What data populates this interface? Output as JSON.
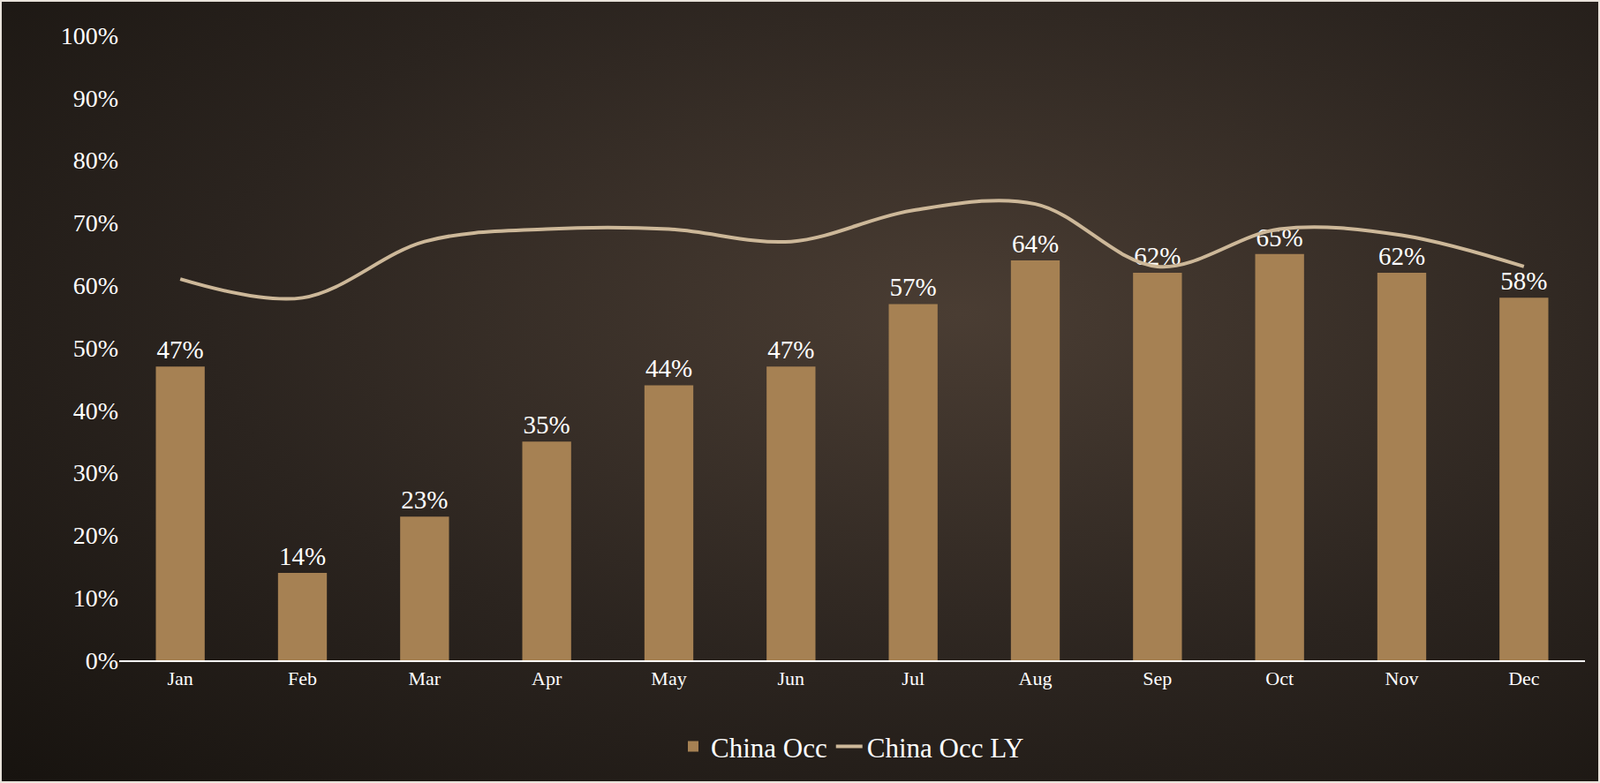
{
  "chart_data": {
    "type": "bar",
    "categories": [
      "Jan",
      "Feb",
      "Mar",
      "Apr",
      "May",
      "Jun",
      "Jul",
      "Aug",
      "Sep",
      "Oct",
      "Nov",
      "Dec"
    ],
    "series": [
      {
        "name": "China Occ",
        "type": "bar",
        "color": "#a68153",
        "values": [
          47,
          14,
          23,
          35,
          44,
          47,
          57,
          64,
          62,
          65,
          62,
          58
        ],
        "value_labels": [
          "47%",
          "14%",
          "23%",
          "35%",
          "44%",
          "47%",
          "57%",
          "64%",
          "62%",
          "65%",
          "62%",
          "58%"
        ]
      },
      {
        "name": "China Occ LY",
        "type": "line",
        "color": "#cdb899",
        "line_style": "smooth",
        "marker": "none",
        "values": [
          61,
          58,
          67,
          69,
          69,
          67,
          72,
          73,
          63,
          69,
          68,
          63
        ]
      }
    ],
    "ylim": [
      0,
      100
    ],
    "yticks": [
      {
        "value": 0,
        "label": "0%"
      },
      {
        "value": 10,
        "label": "10%"
      },
      {
        "value": 20,
        "label": "20%"
      },
      {
        "value": 30,
        "label": "30%"
      },
      {
        "value": 40,
        "label": "40%"
      },
      {
        "value": 50,
        "label": "50%"
      },
      {
        "value": 60,
        "label": "60%"
      },
      {
        "value": 70,
        "label": "70%"
      },
      {
        "value": 80,
        "label": "80%"
      },
      {
        "value": 90,
        "label": "90%"
      },
      {
        "value": 100,
        "label": "100%"
      }
    ],
    "grid": false,
    "legend": "bottom",
    "data_labels": true
  }
}
